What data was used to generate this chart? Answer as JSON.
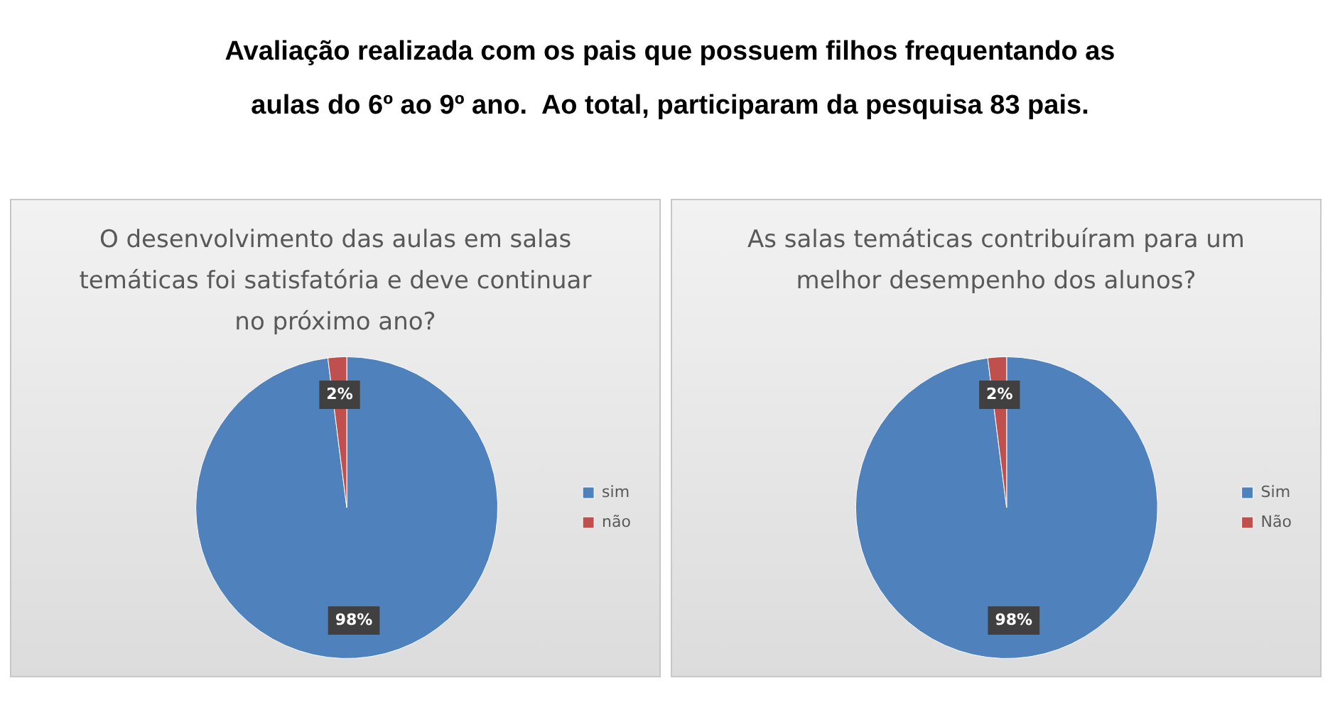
{
  "chart_data": [
    {
      "type": "pie",
      "title": "O desenvolvimento das aulas em salas temáticas foi satisfatória e deve continuar no próximo ano?",
      "annotations": [
        "Avaliação realizada com os pais que possuem filhos frequentando as",
        "aulas do 6º ao 9º ano.  Ao total, participaram da pesquisa 83 pais."
      ],
      "categories": [
        "sim",
        "não"
      ],
      "values": [
        98,
        2
      ],
      "colors": [
        "#4f81bd",
        "#c0504d"
      ],
      "value_labels": [
        "98%",
        "2%"
      ],
      "legend": "right"
    },
    {
      "type": "pie",
      "title": "As salas temáticas contribuíram para um melhor desempenho dos alunos?",
      "categories": [
        "Sim",
        "Não"
      ],
      "values": [
        98,
        2
      ],
      "colors": [
        "#4f81bd",
        "#c0504d"
      ],
      "value_labels": [
        "98%",
        "2%"
      ],
      "legend": "right"
    }
  ]
}
